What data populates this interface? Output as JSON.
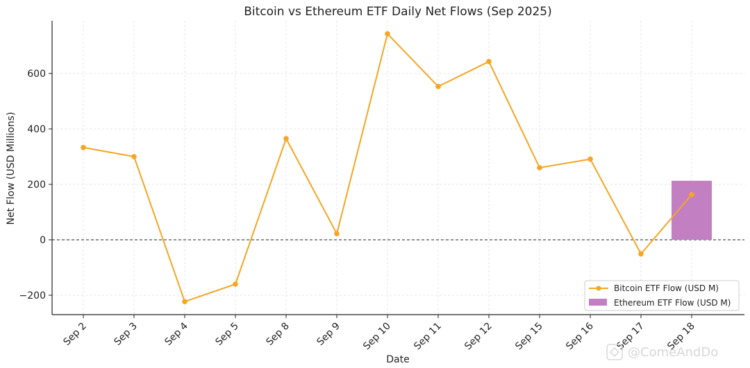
{
  "chart_data": {
    "type": "line",
    "title": "Bitcoin vs Ethereum ETF Daily Net Flows (Sep 2025)",
    "xlabel": "Date",
    "ylabel": "Net Flow (USD Millions)",
    "categories": [
      "Sep 2",
      "Sep 3",
      "Sep 4",
      "Sep 5",
      "Sep 8",
      "Sep 9",
      "Sep 10",
      "Sep 11",
      "Sep 12",
      "Sep 15",
      "Sep 16",
      "Sep 17",
      "Sep 18"
    ],
    "ylim": [
      -270,
      790
    ],
    "yticks": [
      -200,
      0,
      200,
      400,
      600
    ],
    "ytick_labels": [
      "−200",
      "0",
      "200",
      "400",
      "600"
    ],
    "grid": true,
    "zero_line": true,
    "legend_position": "lower-right",
    "series": [
      {
        "name": "Bitcoin ETF Flow (USD M)",
        "kind": "line",
        "color": "#f5a623",
        "values": [
          333,
          300,
          -223,
          -160,
          365,
          22,
          743,
          553,
          643,
          260,
          291,
          -51,
          163
        ]
      },
      {
        "name": "Ethereum ETF Flow (USD M)",
        "kind": "bar",
        "color": "#c27fc2",
        "values": [
          null,
          null,
          null,
          null,
          null,
          null,
          null,
          null,
          null,
          null,
          null,
          null,
          213
        ]
      }
    ]
  },
  "watermark": {
    "text": "@ComeAndDo"
  }
}
